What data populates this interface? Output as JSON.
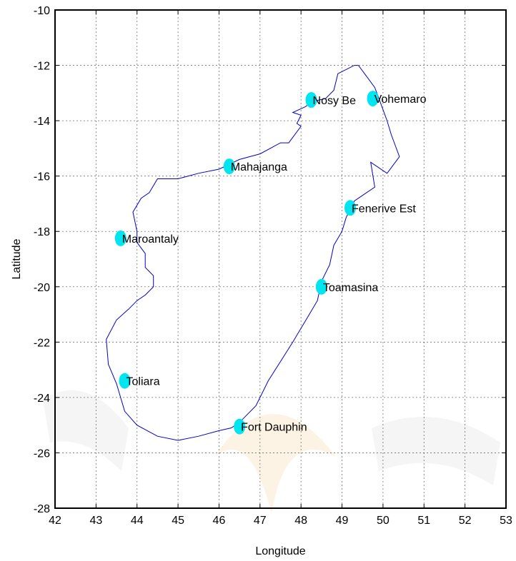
{
  "chart_data": {
    "type": "scatter",
    "xlabel": "Longitude",
    "ylabel": "Latitude",
    "xlim": [
      42,
      53
    ],
    "ylim": [
      -28,
      -10
    ],
    "xticks": [
      42,
      43,
      44,
      45,
      46,
      47,
      48,
      49,
      50,
      51,
      52,
      53
    ],
    "yticks": [
      -10,
      -12,
      -14,
      -16,
      -18,
      -20,
      -22,
      -24,
      -26,
      -28
    ],
    "grid": true,
    "colors": {
      "outline": "#0000cc",
      "marker": "#00e5f0",
      "frame": "#000000"
    },
    "outline": {
      "x": [
        49.4,
        49.6,
        49.8,
        49.9,
        50.0,
        50.1,
        50.2,
        50.4,
        50.1,
        49.7,
        49.8,
        49.5,
        49.3,
        49.1,
        49.0,
        48.8,
        48.7,
        48.5,
        48.4,
        48.2,
        48.0,
        47.8,
        47.5,
        47.2,
        46.9,
        46.5,
        46.3,
        46.0,
        45.5,
        45.0,
        44.5,
        44.0,
        43.7,
        43.5,
        43.3,
        43.25,
        43.5,
        43.8,
        44.0,
        44.2,
        44.4,
        44.4,
        44.2,
        44.2,
        44.0,
        44.0,
        43.9,
        44.1,
        44.3,
        44.5,
        45.0,
        45.5,
        46.0,
        46.5,
        47.0,
        47.5,
        47.7,
        48.0,
        47.9,
        48.0,
        47.8,
        48.1,
        48.3,
        48.6,
        48.8,
        48.9,
        49.3,
        49.4
      ],
      "y": [
        -12.0,
        -12.4,
        -12.8,
        -13.2,
        -13.6,
        -14.0,
        -14.5,
        -15.3,
        -15.9,
        -15.5,
        -16.4,
        -16.7,
        -16.9,
        -17.5,
        -18.0,
        -18.5,
        -19.2,
        -19.8,
        -20.5,
        -21.0,
        -21.5,
        -22.0,
        -22.7,
        -23.4,
        -24.3,
        -24.9,
        -25.1,
        -25.2,
        -25.4,
        -25.55,
        -25.4,
        -25.0,
        -24.5,
        -23.5,
        -22.8,
        -21.9,
        -21.2,
        -20.8,
        -20.5,
        -20.3,
        -20.0,
        -19.6,
        -19.3,
        -18.8,
        -18.4,
        -18.0,
        -17.3,
        -16.8,
        -16.6,
        -16.1,
        -16.1,
        -15.9,
        -15.75,
        -15.4,
        -15.2,
        -14.8,
        -14.8,
        -14.2,
        -14.1,
        -13.8,
        -13.7,
        -13.5,
        -13.3,
        -13.2,
        -12.9,
        -12.3,
        -12.0,
        -12.0
      ]
    },
    "cities": [
      {
        "name": "Nosy Be",
        "lon": 48.25,
        "lat": -13.25
      },
      {
        "name": "Vohemaro",
        "lon": 49.75,
        "lat": -13.2
      },
      {
        "name": "Mahajanga",
        "lon": 46.25,
        "lat": -15.65
      },
      {
        "name": "Fenerive Est",
        "lon": 49.2,
        "lat": -17.15
      },
      {
        "name": "Maroantaly",
        "lon": 43.6,
        "lat": -18.25
      },
      {
        "name": "Toamasina",
        "lon": 48.5,
        "lat": -20.0
      },
      {
        "name": "Toliara",
        "lon": 43.7,
        "lat": -23.4
      },
      {
        "name": "Fort Dauphin",
        "lon": 46.5,
        "lat": -25.05
      }
    ]
  }
}
